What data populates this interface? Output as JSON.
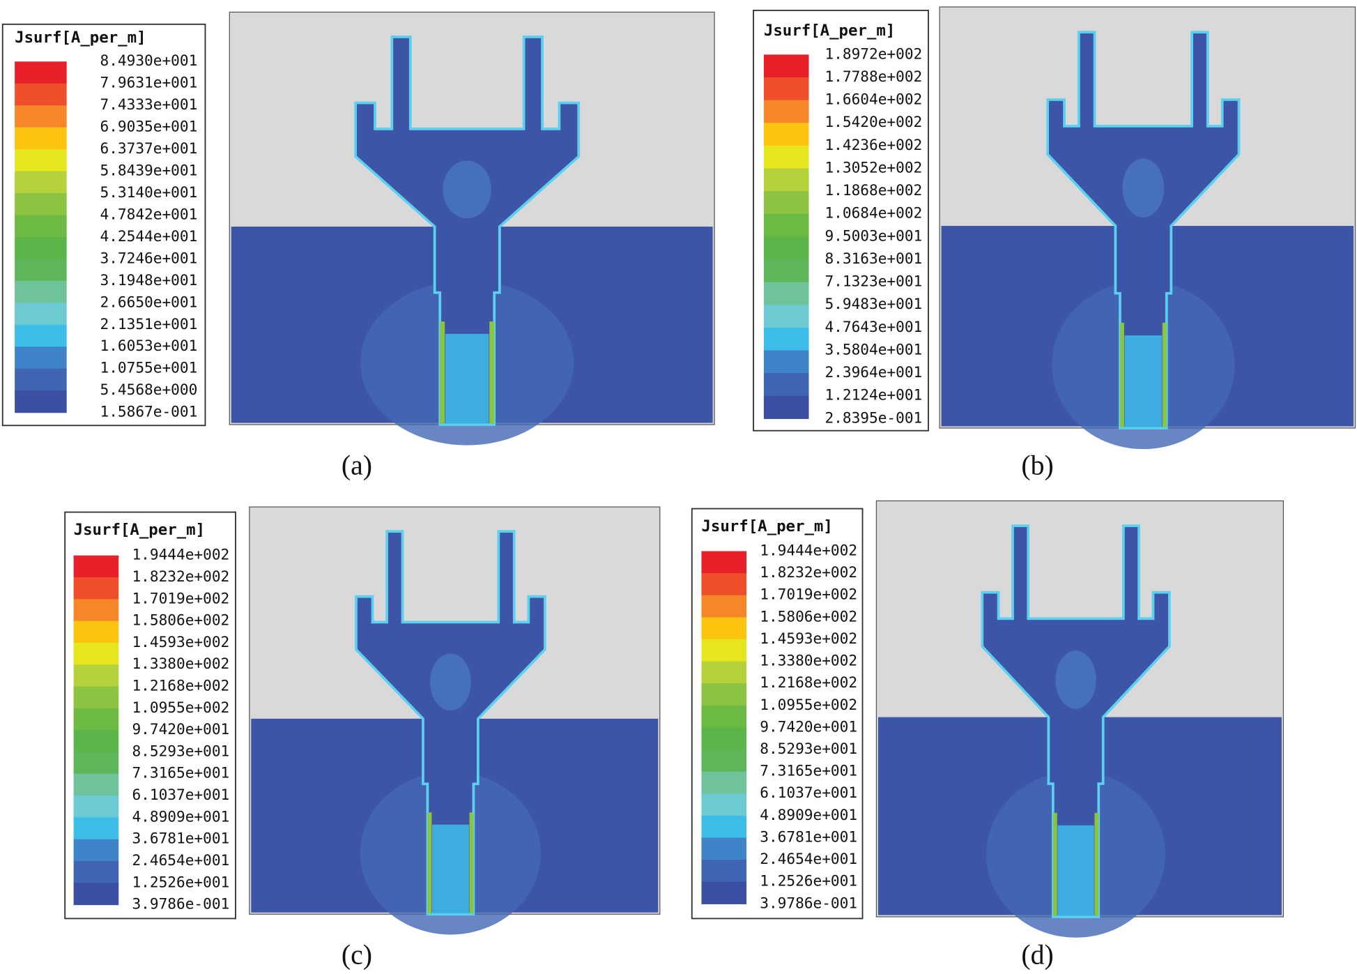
{
  "panels": [
    {
      "caption": "(a)",
      "legend": {
        "title": "Jsurf[A_per_m]",
        "labels": [
          "8.4930e+001",
          "7.9631e+001",
          "7.4333e+001",
          "6.9035e+001",
          "6.3737e+001",
          "5.8439e+001",
          "5.3140e+001",
          "4.7842e+001",
          "4.2544e+001",
          "3.7246e+001",
          "3.1948e+001",
          "2.6650e+001",
          "2.1351e+001",
          "1.6053e+001",
          "1.0755e+001",
          "5.4568e+000",
          "1.5867e-001"
        ]
      }
    },
    {
      "caption": "(b)",
      "legend": {
        "title": "Jsurf[A_per_m]",
        "labels": [
          "1.8972e+002",
          "1.7788e+002",
          "1.6604e+002",
          "1.5420e+002",
          "1.4236e+002",
          "1.3052e+002",
          "1.1868e+002",
          "1.0684e+002",
          "9.5003e+001",
          "8.3163e+001",
          "7.1323e+001",
          "5.9483e+001",
          "4.7643e+001",
          "3.5804e+001",
          "2.3964e+001",
          "1.2124e+001",
          "2.8395e-001"
        ]
      }
    },
    {
      "caption": "(c)",
      "legend": {
        "title": "Jsurf[A_per_m]",
        "labels": [
          "1.9444e+002",
          "1.8232e+002",
          "1.7019e+002",
          "1.5806e+002",
          "1.4593e+002",
          "1.3380e+002",
          "1.2168e+002",
          "1.0955e+002",
          "9.7420e+001",
          "8.5293e+001",
          "7.3165e+001",
          "6.1037e+001",
          "4.8909e+001",
          "3.6781e+001",
          "2.4654e+001",
          "1.2526e+001",
          "3.9786e-001"
        ]
      }
    },
    {
      "caption": "(d)",
      "legend": {
        "title": "Jsurf[A_per_m]",
        "labels": [
          "1.9444e+002",
          "1.8232e+002",
          "1.7019e+002",
          "1.5806e+002",
          "1.4593e+002",
          "1.3380e+002",
          "1.2168e+002",
          "1.0955e+002",
          "9.7420e+001",
          "8.5293e+001",
          "7.3165e+001",
          "6.1037e+001",
          "4.8909e+001",
          "3.6781e+001",
          "2.4654e+001",
          "1.2526e+001",
          "3.9786e-001"
        ]
      }
    }
  ]
}
